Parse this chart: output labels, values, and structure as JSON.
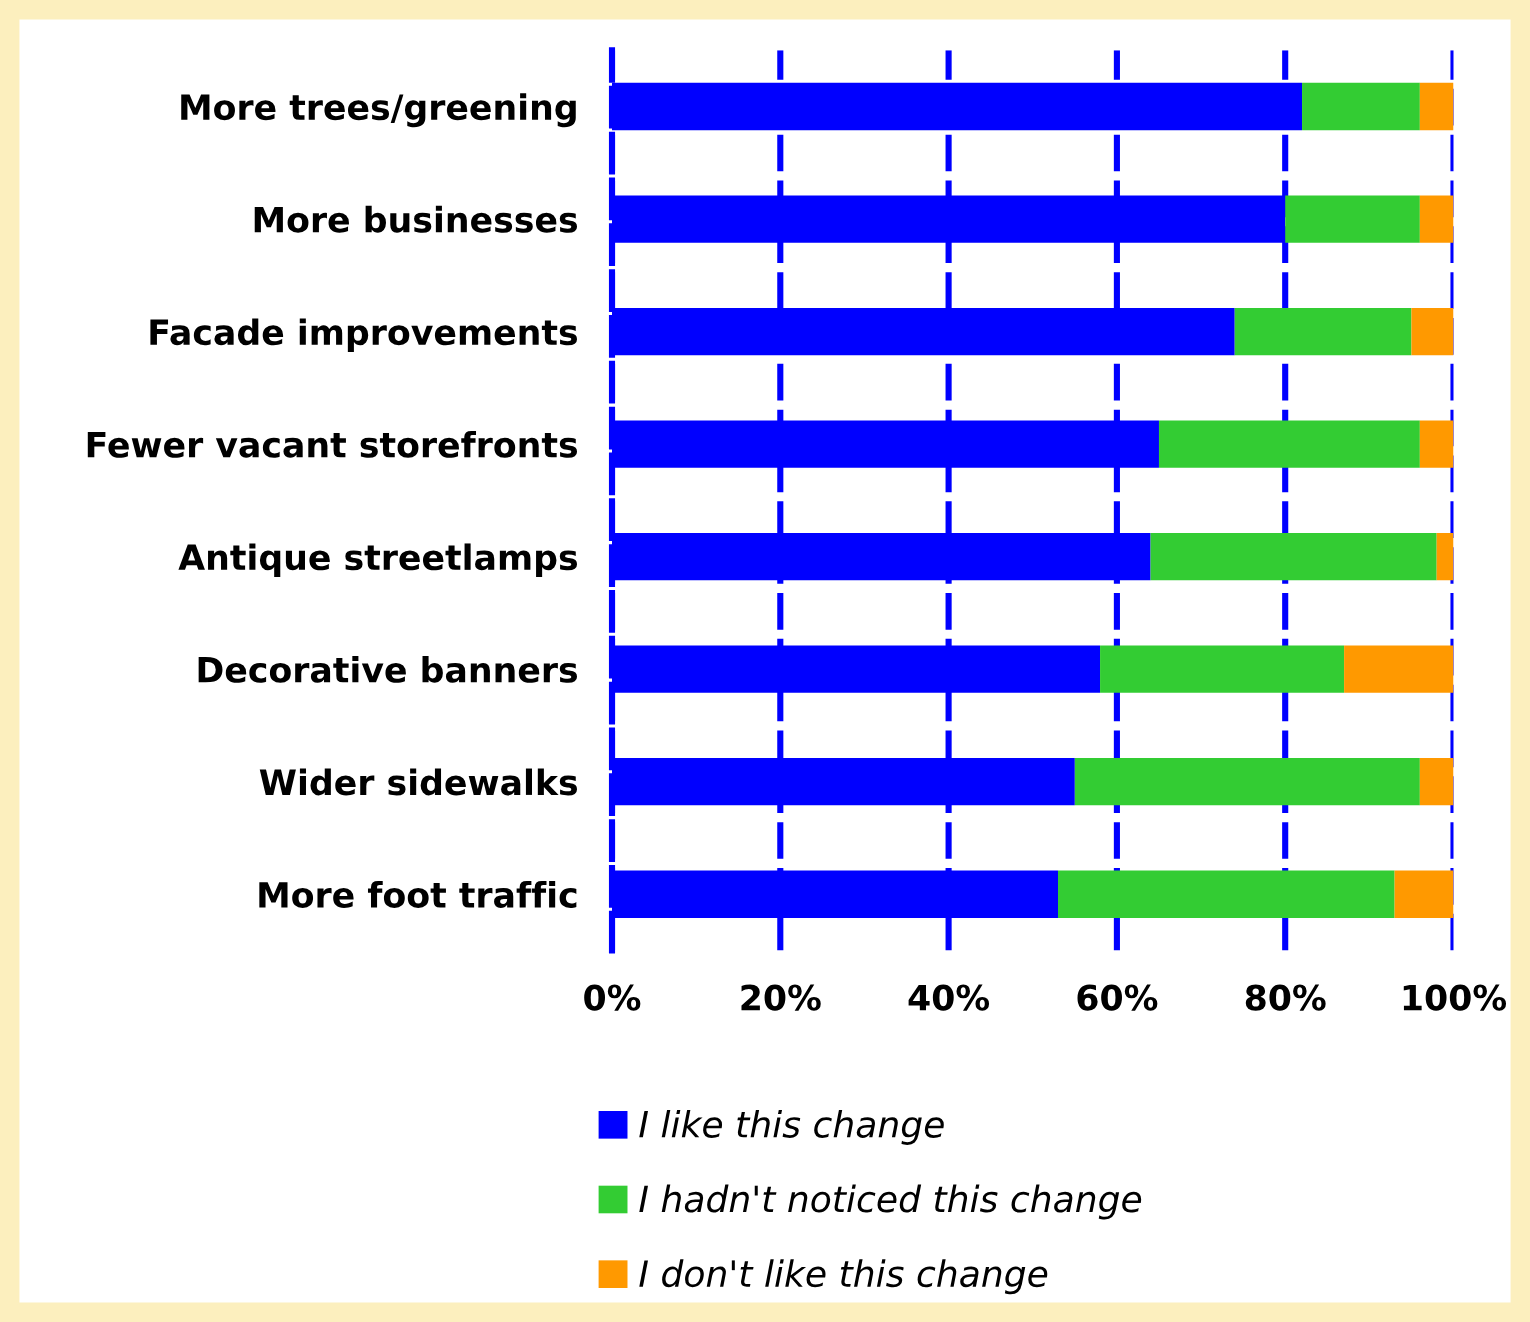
{
  "chart_data": {
    "type": "bar",
    "orientation": "horizontal",
    "stacked": true,
    "categories": [
      "More trees/greening",
      "More businesses",
      "Facade improvements",
      "Fewer vacant storefronts",
      "Antique streetlamps",
      "Decorative banners",
      "Wider sidewalks",
      "More foot traffic"
    ],
    "series": [
      {
        "name": "I like this change",
        "color": "#0000ff",
        "values": [
          82,
          80,
          74,
          65,
          64,
          58,
          55,
          53
        ]
      },
      {
        "name": "I hadn't noticed this change",
        "color": "#33cc33",
        "values": [
          14,
          16,
          21,
          31,
          34,
          29,
          41,
          40
        ]
      },
      {
        "name": "I don't like this change",
        "color": "#ff9900",
        "values": [
          4,
          4,
          5,
          4,
          2,
          13,
          4,
          7
        ]
      }
    ],
    "xlim": [
      0,
      100
    ],
    "xticks": [
      {
        "value": 0,
        "label": "0%"
      },
      {
        "value": 20,
        "label": "20%"
      },
      {
        "value": 40,
        "label": "40%"
      },
      {
        "value": 60,
        "label": "60%"
      },
      {
        "value": 80,
        "label": "80%"
      },
      {
        "value": 100,
        "label": "100%"
      }
    ],
    "grid": "x",
    "legend": "bottom"
  }
}
